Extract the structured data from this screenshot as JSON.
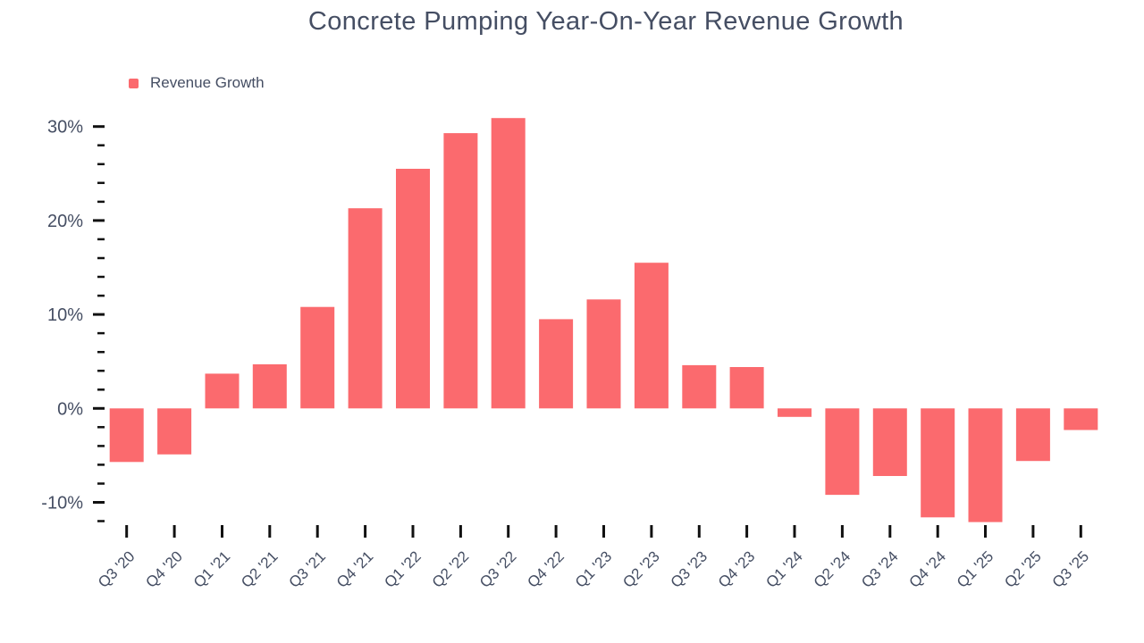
{
  "chart_data": {
    "type": "bar",
    "title": "Concrete Pumping Year-On-Year Revenue Growth",
    "legend": {
      "position": "top-left",
      "items": [
        "Revenue Growth"
      ]
    },
    "categories": [
      "Q3 '20",
      "Q4 '20",
      "Q1 '21",
      "Q2 '21",
      "Q3 '21",
      "Q4 '21",
      "Q1 '22",
      "Q2 '22",
      "Q3 '22",
      "Q4 '22",
      "Q1 '23",
      "Q2 '23",
      "Q3 '23",
      "Q4 '23",
      "Q1 '24",
      "Q2 '24",
      "Q3 '24",
      "Q4 '24",
      "Q1 '25",
      "Q2 '25",
      "Q3 '25"
    ],
    "series": [
      {
        "name": "Revenue Growth",
        "color": "#FB6A6E",
        "values": [
          -5.7,
          -4.9,
          3.7,
          4.7,
          10.8,
          21.3,
          25.5,
          29.3,
          30.9,
          9.5,
          11.6,
          15.5,
          4.6,
          4.4,
          -0.9,
          -9.2,
          -7.2,
          -11.6,
          -12.1,
          -5.6,
          -2.3
        ]
      }
    ],
    "xlabel": "",
    "ylabel": "",
    "unit": "%",
    "y_axis": {
      "major_tick_values": [
        30,
        20,
        10,
        0,
        -10
      ],
      "major_tick_labels": [
        "30%",
        "20%",
        "10%",
        "0%",
        "-10%"
      ],
      "minor_tick_step": 2,
      "tick_range_shown": [
        -12,
        30
      ],
      "ylim": [
        -14,
        32
      ]
    },
    "grid": false,
    "colors": {
      "bar": "#FB6A6E",
      "text": "#454E63",
      "tick": "#111111",
      "background": "#FFFFFF"
    }
  }
}
